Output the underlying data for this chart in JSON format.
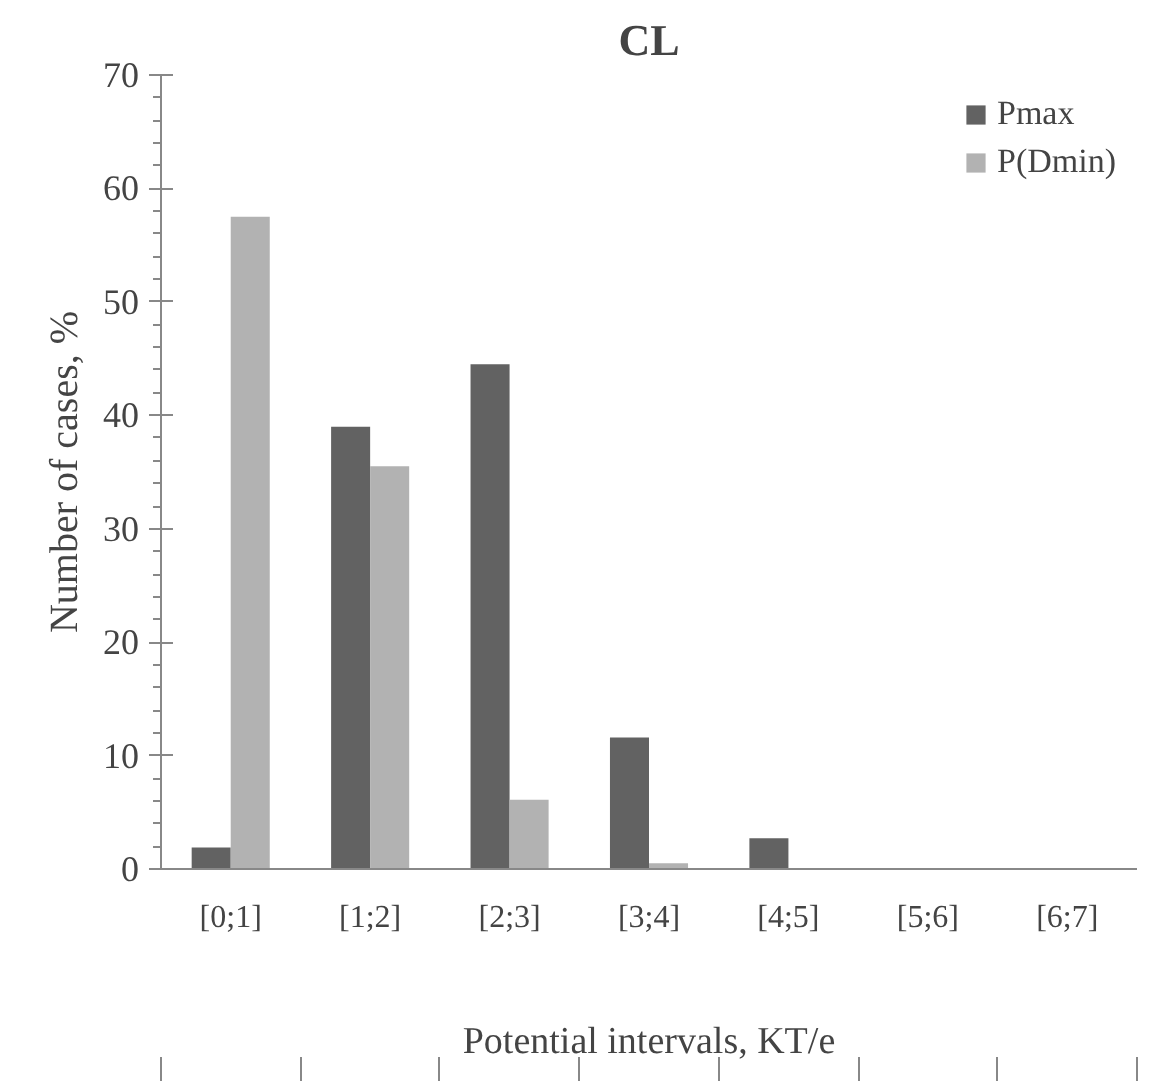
{
  "chart_data": {
    "type": "bar",
    "title": "CL",
    "xlabel": "Potential intervals, KT/e",
    "ylabel": "Number of cases, %",
    "categories": [
      "[0;1]",
      "[1;2]",
      "[2;3]",
      "[3;4]",
      "[4;5]",
      "[5;6]",
      "[6;7]"
    ],
    "series": [
      {
        "name": "Pmax",
        "color": "#626262",
        "values": [
          1.9,
          39.0,
          44.5,
          11.6,
          2.7,
          0,
          0
        ]
      },
      {
        "name": "P(Dmin)",
        "color": "#b2b2b2",
        "values": [
          57.5,
          35.5,
          6.1,
          0.5,
          0,
          0,
          0
        ]
      }
    ],
    "ylim": [
      0,
      70
    ],
    "yticks": [
      0,
      10,
      20,
      30,
      40,
      50,
      60,
      70
    ],
    "grid": false,
    "legend": "top right"
  }
}
